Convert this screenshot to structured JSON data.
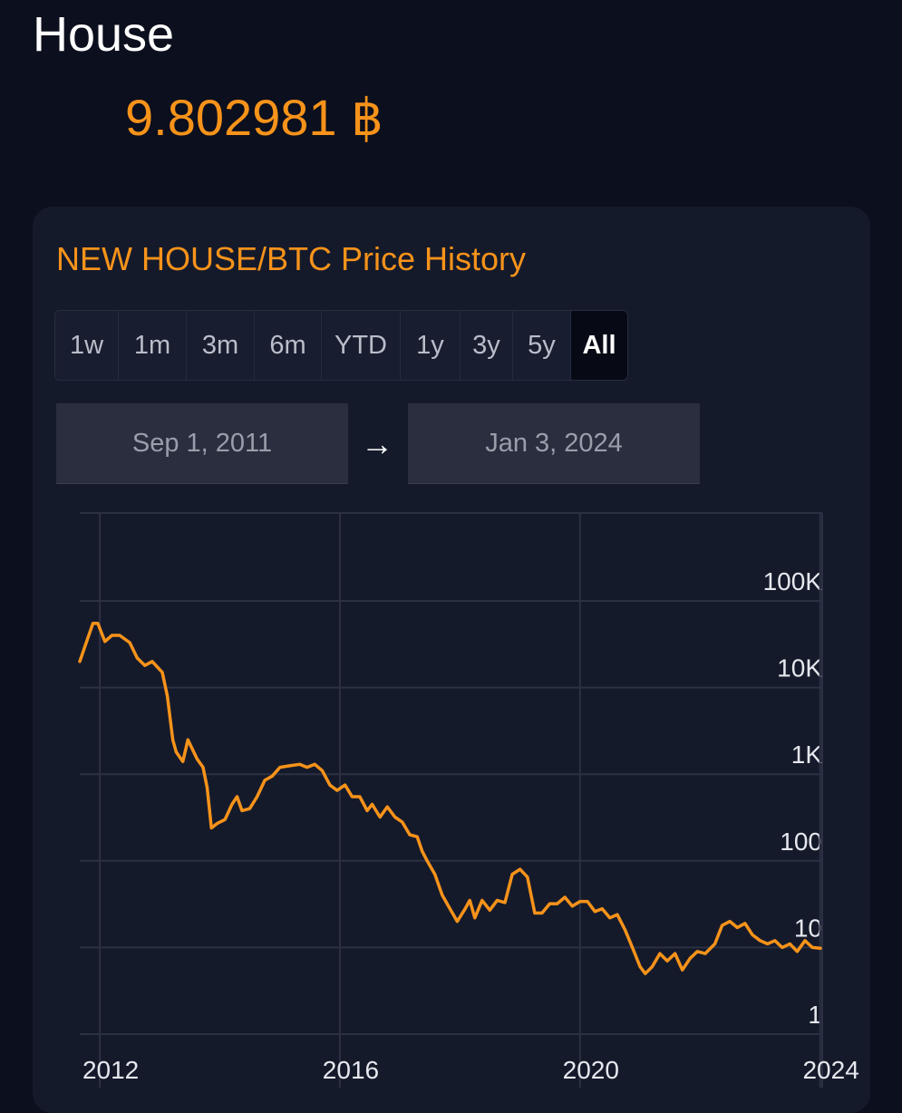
{
  "header": {
    "title": "House",
    "price": "9.802981 ฿"
  },
  "card": {
    "title": "NEW HOUSE/BTC Price History",
    "tabs": [
      {
        "label": "1w",
        "active": false
      },
      {
        "label": "1m",
        "active": false
      },
      {
        "label": "3m",
        "active": false
      },
      {
        "label": "6m",
        "active": false
      },
      {
        "label": "YTD",
        "active": false
      },
      {
        "label": "1y",
        "active": false
      },
      {
        "label": "3y",
        "active": false
      },
      {
        "label": "5y",
        "active": false
      },
      {
        "label": "All",
        "active": true
      }
    ],
    "date_from": "Sep 1, 2011",
    "date_to": "Jan 3, 2024",
    "arrow": "→"
  },
  "colors": {
    "accent": "#f7931a",
    "background": "#0c0f1d",
    "card": "#151a2b",
    "grid": "#2b3042"
  },
  "chart_data": {
    "type": "line",
    "title": "NEW HOUSE/BTC Price History",
    "xlabel": "",
    "ylabel": "",
    "y_scale": "log",
    "ylim": [
      0.55,
      800000
    ],
    "x_range": [
      "2011-09-01",
      "2024-01-03"
    ],
    "x_ticks": [
      {
        "date": "2012-01-01",
        "label": "2012"
      },
      {
        "date": "2016-01-01",
        "label": "2016"
      },
      {
        "date": "2020-01-01",
        "label": "2020"
      },
      {
        "date": "2024-01-01",
        "label": "2024"
      }
    ],
    "y_ticks": [
      {
        "value": 1,
        "label": "1"
      },
      {
        "value": 10,
        "label": "10"
      },
      {
        "value": 100,
        "label": "100"
      },
      {
        "value": 1000,
        "label": "1K"
      },
      {
        "value": 10000,
        "label": "10K"
      },
      {
        "value": 100000,
        "label": "100K"
      }
    ],
    "grid": true,
    "series": [
      {
        "color": "#f7931a",
        "points": [
          [
            "2011-09-01",
            20000
          ],
          [
            "2011-10-15",
            35000
          ],
          [
            "2011-11-20",
            55000
          ],
          [
            "2011-12-20",
            55000
          ],
          [
            "2012-02-01",
            34000
          ],
          [
            "2012-03-15",
            40000
          ],
          [
            "2012-05-01",
            40000
          ],
          [
            "2012-07-01",
            33000
          ],
          [
            "2012-08-15",
            22000
          ],
          [
            "2012-10-01",
            18000
          ],
          [
            "2012-11-15",
            20000
          ],
          [
            "2013-01-15",
            15000
          ],
          [
            "2013-02-15",
            8000
          ],
          [
            "2013-03-20",
            2500
          ],
          [
            "2013-04-10",
            1800
          ],
          [
            "2013-05-20",
            1400
          ],
          [
            "2013-06-20",
            2500
          ],
          [
            "2013-08-15",
            1500
          ],
          [
            "2013-09-20",
            1200
          ],
          [
            "2013-10-15",
            700
          ],
          [
            "2013-11-10",
            240
          ],
          [
            "2013-12-15",
            270
          ],
          [
            "2014-02-01",
            300
          ],
          [
            "2014-03-15",
            450
          ],
          [
            "2014-04-15",
            550
          ],
          [
            "2014-05-15",
            380
          ],
          [
            "2014-07-01",
            400
          ],
          [
            "2014-08-15",
            550
          ],
          [
            "2014-10-01",
            850
          ],
          [
            "2014-11-15",
            950
          ],
          [
            "2015-01-01",
            1200
          ],
          [
            "2015-03-01",
            1250
          ],
          [
            "2015-05-01",
            1300
          ],
          [
            "2015-06-15",
            1200
          ],
          [
            "2015-08-01",
            1300
          ],
          [
            "2015-09-15",
            1100
          ],
          [
            "2015-11-01",
            750
          ],
          [
            "2015-12-15",
            650
          ],
          [
            "2016-02-01",
            750
          ],
          [
            "2016-03-15",
            550
          ],
          [
            "2016-05-01",
            550
          ],
          [
            "2016-06-15",
            380
          ],
          [
            "2016-07-15",
            450
          ],
          [
            "2016-09-01",
            320
          ],
          [
            "2016-10-15",
            420
          ],
          [
            "2016-12-01",
            320
          ],
          [
            "2017-01-15",
            280
          ],
          [
            "2017-03-01",
            200
          ],
          [
            "2017-04-15",
            190
          ],
          [
            "2017-05-15",
            130
          ],
          [
            "2017-06-15",
            100
          ],
          [
            "2017-08-01",
            70
          ],
          [
            "2017-09-15",
            40
          ],
          [
            "2017-11-01",
            28
          ],
          [
            "2017-12-15",
            20
          ],
          [
            "2018-02-01",
            28
          ],
          [
            "2018-03-01",
            35
          ],
          [
            "2018-04-01",
            22
          ],
          [
            "2018-05-15",
            35
          ],
          [
            "2018-07-01",
            27
          ],
          [
            "2018-08-15",
            35
          ],
          [
            "2018-10-01",
            33
          ],
          [
            "2018-11-15",
            70
          ],
          [
            "2019-01-01",
            80
          ],
          [
            "2019-02-15",
            65
          ],
          [
            "2019-04-01",
            25
          ],
          [
            "2019-05-15",
            25
          ],
          [
            "2019-07-01",
            32
          ],
          [
            "2019-08-15",
            32
          ],
          [
            "2019-10-01",
            38
          ],
          [
            "2019-11-15",
            30
          ],
          [
            "2020-01-01",
            34
          ],
          [
            "2020-02-15",
            34
          ],
          [
            "2020-04-01",
            26
          ],
          [
            "2020-05-15",
            28
          ],
          [
            "2020-07-01",
            22
          ],
          [
            "2020-08-15",
            24
          ],
          [
            "2020-10-01",
            16
          ],
          [
            "2020-11-15",
            10
          ],
          [
            "2021-01-01",
            6
          ],
          [
            "2021-02-01",
            5
          ],
          [
            "2021-03-15",
            6
          ],
          [
            "2021-05-01",
            8.5
          ],
          [
            "2021-06-15",
            7
          ],
          [
            "2021-08-01",
            8.5
          ],
          [
            "2021-09-15",
            5.5
          ],
          [
            "2021-11-01",
            7.5
          ],
          [
            "2021-12-15",
            9
          ],
          [
            "2022-02-01",
            8.5
          ],
          [
            "2022-04-01",
            11
          ],
          [
            "2022-05-15",
            18
          ],
          [
            "2022-07-01",
            20
          ],
          [
            "2022-08-15",
            17
          ],
          [
            "2022-10-01",
            19
          ],
          [
            "2022-11-15",
            14
          ],
          [
            "2023-01-01",
            12
          ],
          [
            "2023-02-15",
            11
          ],
          [
            "2023-04-01",
            12
          ],
          [
            "2023-05-15",
            10
          ],
          [
            "2023-07-01",
            11
          ],
          [
            "2023-08-15",
            9
          ],
          [
            "2023-10-01",
            12
          ],
          [
            "2023-11-15",
            10
          ],
          [
            "2024-01-03",
            9.8
          ]
        ]
      }
    ]
  }
}
